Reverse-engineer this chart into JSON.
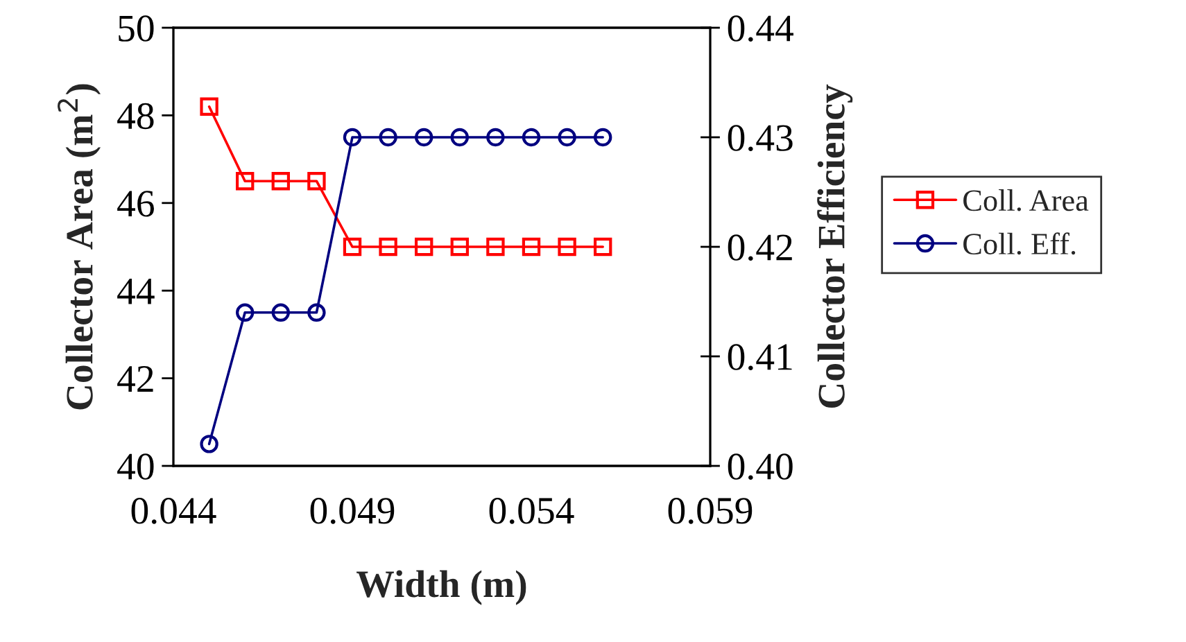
{
  "chart_data": {
    "type": "line",
    "xlabel": "Width (m)",
    "ylabel": "Collector Area (m$^{2}$)",
    "y2label": "Collector Efficiency",
    "x": [
      0.045,
      0.046,
      0.047,
      0.048,
      0.049,
      0.05,
      0.051,
      0.052,
      0.053,
      0.054,
      0.055,
      0.056
    ],
    "series": [
      {
        "name": "Coll. Area",
        "color": "#ff0000",
        "marker": "square",
        "values": [
          48.2,
          46.5,
          46.5,
          46.5,
          45.0,
          45.0,
          45.0,
          45.0,
          45.0,
          45.0,
          45.0,
          45.0
        ]
      },
      {
        "name": "Coll. Eff.",
        "color": "#000080",
        "marker": "circle",
        "axis": "y2",
        "values": [
          0.402,
          0.414,
          0.414,
          0.414,
          0.43,
          0.43,
          0.43,
          0.43,
          0.43,
          0.43,
          0.43,
          0.43
        ]
      }
    ],
    "xlim": [
      0.044,
      0.059
    ],
    "xticks": [
      0.044,
      0.049,
      0.054,
      0.059
    ],
    "ylim": [
      40,
      50
    ],
    "yticks": [
      40,
      42,
      44,
      46,
      48,
      50
    ],
    "y2lim": [
      0.4,
      0.44
    ],
    "y2ticks": [
      {
        "value": 0.4,
        "label": "0.40"
      },
      {
        "value": 0.41,
        "label": "0.41"
      },
      {
        "value": 0.42,
        "label": "0.42"
      },
      {
        "value": 0.43,
        "label": "0.43"
      },
      {
        "value": 0.44,
        "label": "0.44"
      }
    ],
    "grid": false,
    "legend": "right",
    "line_style": "solid"
  }
}
